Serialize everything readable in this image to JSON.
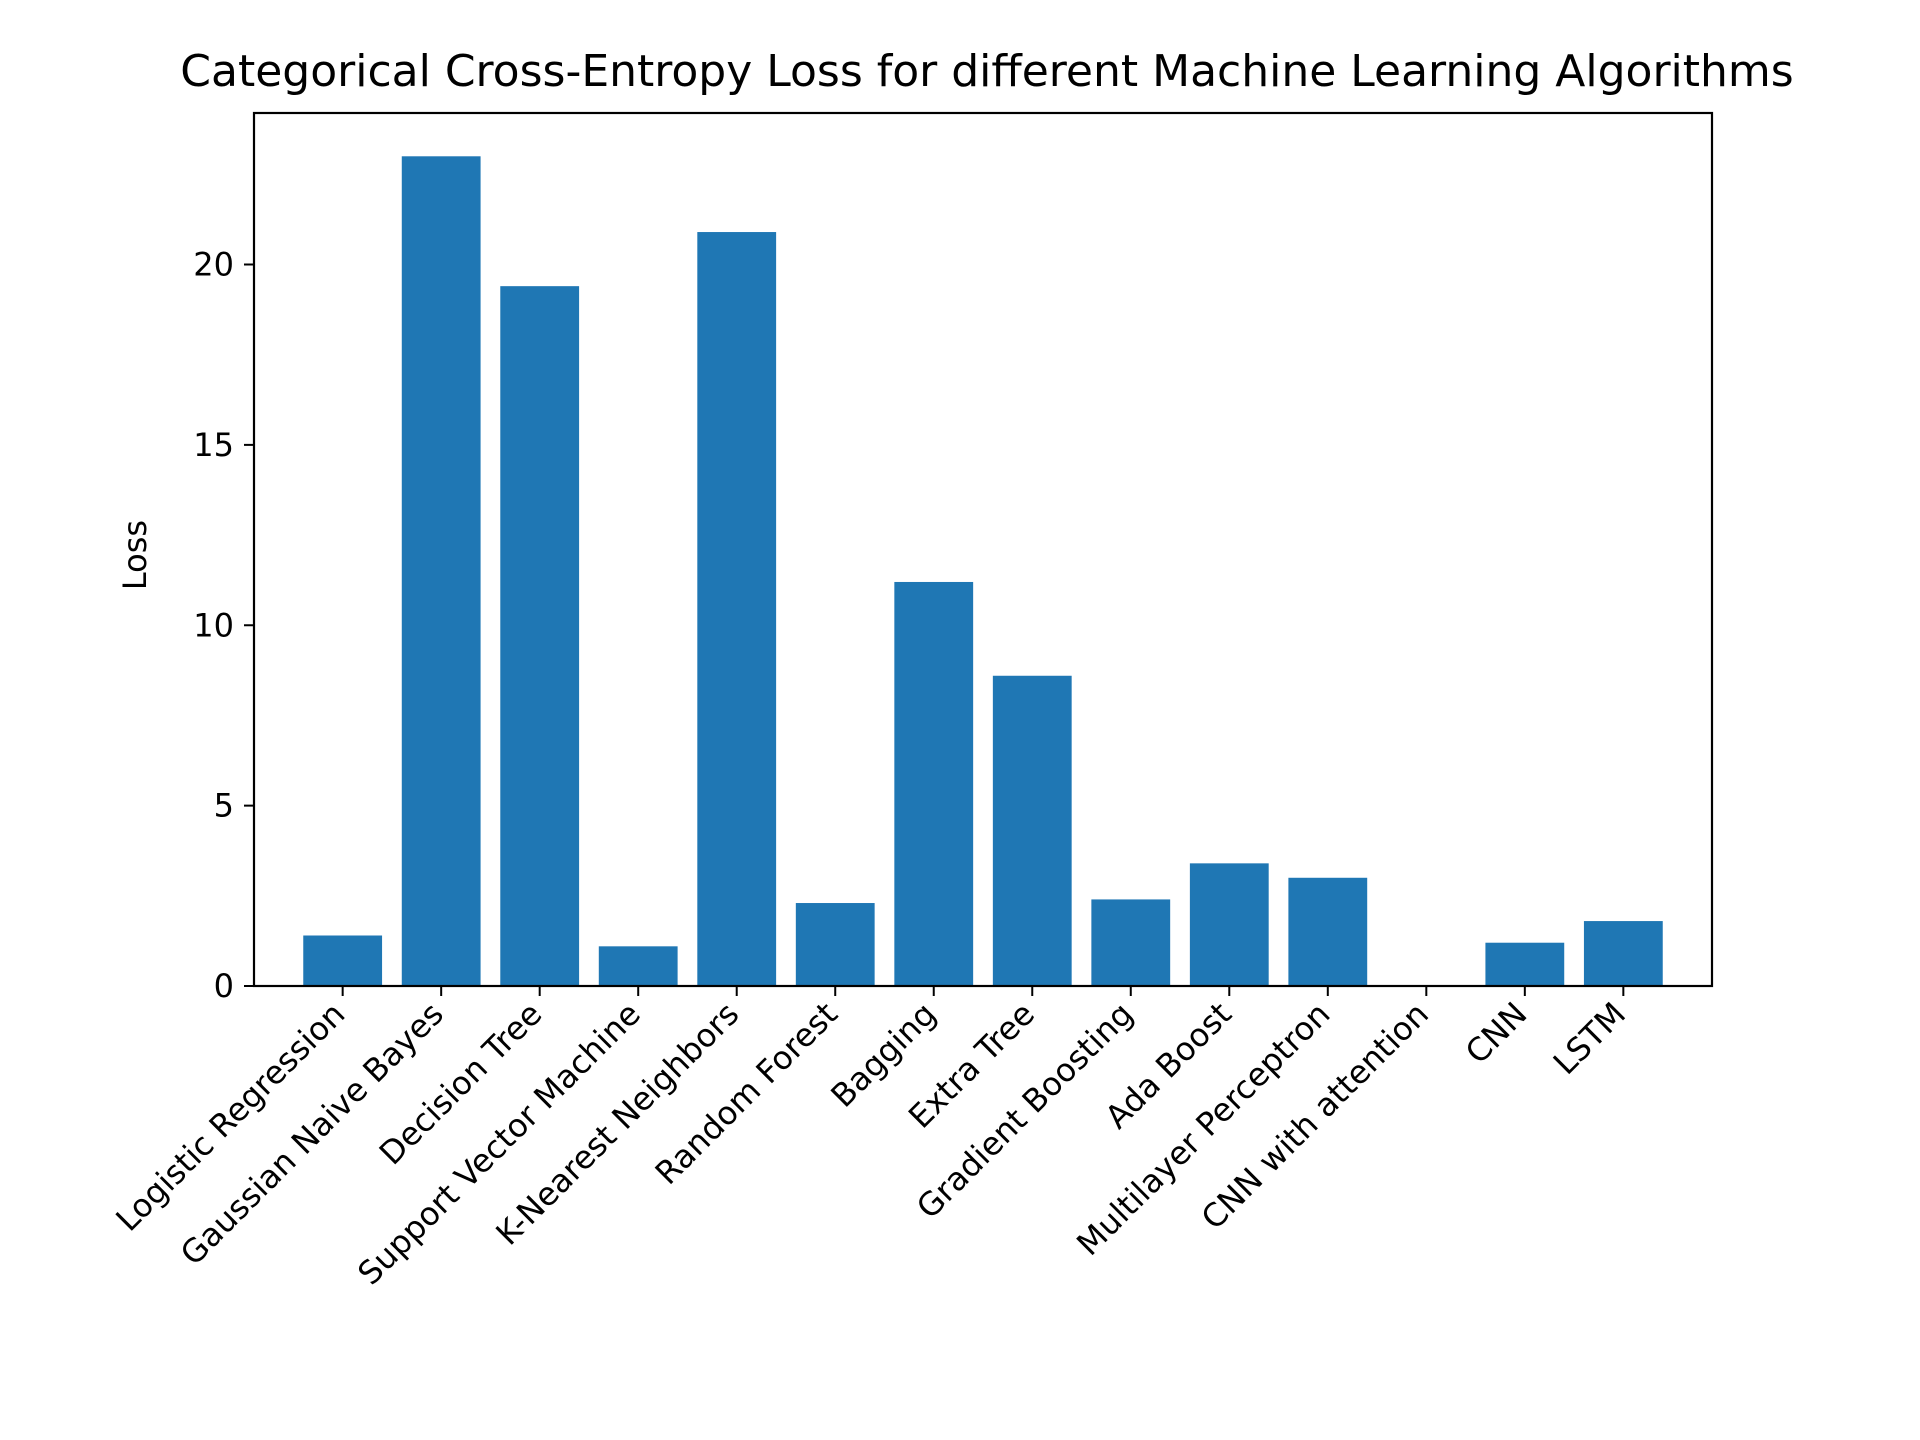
{
  "chart_data": {
    "type": "bar",
    "title": "Categorical Cross-Entropy Loss for different Machine Learning Algorithms",
    "xlabel": "",
    "ylabel": "Loss",
    "categories": [
      "Logistic Regression",
      "Gaussian Naive Bayes",
      "Decision Tree",
      "Support Vector Machine",
      "K-Nearest Neighbors",
      "Random Forest",
      "Bagging",
      "Extra Tree",
      "Gradient Boosting",
      "Ada Boost",
      "Multilayer Perceptron",
      "CNN with attention",
      "CNN",
      "LSTM"
    ],
    "values": [
      1.4,
      23.0,
      19.4,
      1.1,
      20.9,
      2.3,
      11.2,
      8.6,
      2.4,
      3.4,
      3.0,
      0.0,
      1.2,
      1.8
    ],
    "ylim": [
      0,
      24.2
    ],
    "yticks": [
      0,
      5,
      10,
      15,
      20
    ],
    "grid": false,
    "bar_color": "#1f77b4"
  }
}
